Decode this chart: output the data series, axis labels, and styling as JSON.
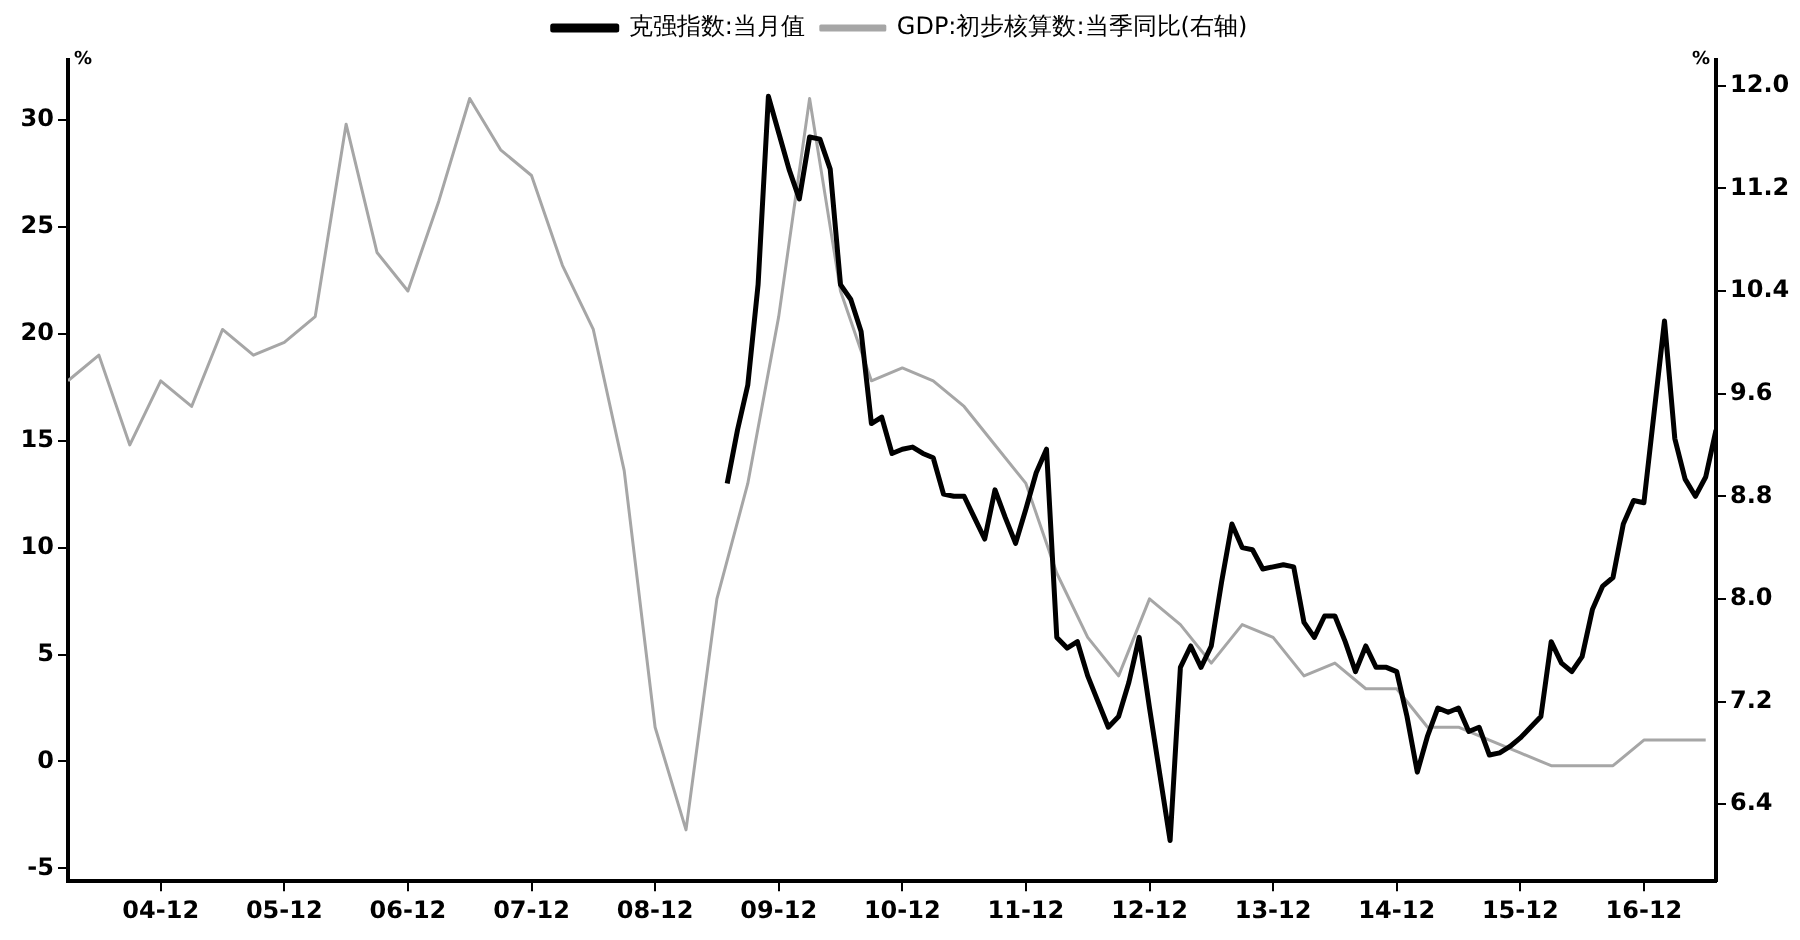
{
  "chart_data": {
    "type": "line",
    "ylabel": "%",
    "y2label": "%",
    "xlim": [
      "2004-03",
      "2017-07"
    ],
    "xticks": [
      {
        "value": "2004-12",
        "label": "04-12"
      },
      {
        "value": "2005-12",
        "label": "05-12"
      },
      {
        "value": "2006-12",
        "label": "06-12"
      },
      {
        "value": "2007-12",
        "label": "07-12"
      },
      {
        "value": "2008-12",
        "label": "08-12"
      },
      {
        "value": "2009-12",
        "label": "09-12"
      },
      {
        "value": "2010-12",
        "label": "10-12"
      },
      {
        "value": "2011-12",
        "label": "11-12"
      },
      {
        "value": "2012-12",
        "label": "12-12"
      },
      {
        "value": "2013-12",
        "label": "13-12"
      },
      {
        "value": "2014-12",
        "label": "14-12"
      },
      {
        "value": "2015-12",
        "label": "15-12"
      },
      {
        "value": "2016-12",
        "label": "16-12"
      }
    ],
    "ylim": [
      -5.6,
      32.8
    ],
    "yticks": [
      -5,
      0,
      5,
      10,
      15,
      20,
      25,
      30
    ],
    "y2lim": [
      5.8,
      12.2
    ],
    "y2ticks": [
      {
        "value": 6.4,
        "label": "6.4"
      },
      {
        "value": 7.2,
        "label": "7.2"
      },
      {
        "value": 8,
        "label": "8.0"
      },
      {
        "value": 8.8,
        "label": "8.8"
      },
      {
        "value": 9.6,
        "label": "9.6"
      },
      {
        "value": 10.4,
        "label": "10.4"
      },
      {
        "value": 11.2,
        "label": "11.2"
      },
      {
        "value": 12,
        "label": "12.0"
      }
    ],
    "grid": false,
    "legend": "top",
    "marker": "none",
    "line_style": "solid",
    "series": [
      {
        "name": "克强指数:当月值",
        "color": "#000000",
        "x": [
          "2009-07",
          "2009-08",
          "2009-09",
          "2009-10",
          "2009-11",
          "2009-12",
          "2010-01",
          "2010-02",
          "2010-03",
          "2010-04",
          "2010-05",
          "2010-06",
          "2010-07",
          "2010-08",
          "2010-09",
          "2010-10",
          "2010-11",
          "2010-12",
          "2011-01",
          "2011-02",
          "2011-03",
          "2011-04",
          "2011-05",
          "2011-06",
          "2011-07",
          "2011-08",
          "2011-09",
          "2011-10",
          "2011-11",
          "2011-12",
          "2012-01",
          "2012-02",
          "2012-03",
          "2012-04",
          "2012-05",
          "2012-06",
          "2012-07",
          "2012-08",
          "2012-09",
          "2012-10",
          "2012-11",
          "2012-12",
          "2013-01",
          "2013-02",
          "2013-03",
          "2013-04",
          "2013-05",
          "2013-06",
          "2013-07",
          "2013-08",
          "2013-09",
          "2013-10",
          "2013-11",
          "2013-12",
          "2014-01",
          "2014-02",
          "2014-03",
          "2014-04",
          "2014-05",
          "2014-06",
          "2014-07",
          "2014-08",
          "2014-09",
          "2014-10",
          "2014-11",
          "2014-12",
          "2015-01",
          "2015-02",
          "2015-03",
          "2015-04",
          "2015-05",
          "2015-06",
          "2015-07",
          "2015-08",
          "2015-09",
          "2015-10",
          "2015-11",
          "2015-12",
          "2016-01",
          "2016-02",
          "2016-03",
          "2016-04",
          "2016-05",
          "2016-06",
          "2016-07",
          "2016-08",
          "2016-09",
          "2016-10",
          "2016-11",
          "2016-12",
          "2017-02",
          "2017-03",
          "2017-04",
          "2017-05",
          "2017-06",
          "2017-07"
        ],
        "values": [
          13.0,
          15.5,
          17.6,
          22.3,
          31.1,
          29.4,
          27.7,
          26.3,
          29.2,
          29.1,
          27.7,
          22.3,
          21.6,
          20.1,
          15.8,
          16.1,
          14.4,
          14.6,
          14.7,
          14.4,
          14.2,
          12.5,
          12.4,
          12.4,
          11.4,
          10.4,
          12.7,
          11.4,
          10.2,
          11.8,
          13.5,
          14.6,
          5.8,
          5.3,
          5.6,
          4.0,
          2.8,
          1.6,
          2.1,
          3.7,
          5.8,
          2.5,
          -0.6,
          -3.7,
          4.4,
          5.4,
          4.4,
          5.4,
          8.4,
          11.1,
          10.0,
          9.9,
          9.0,
          9.1,
          9.2,
          9.1,
          6.5,
          5.8,
          6.8,
          6.8,
          5.6,
          4.2,
          5.4,
          4.4,
          4.4,
          4.2,
          2.1,
          -0.5,
          1.2,
          2.5,
          2.3,
          2.5,
          1.4,
          1.6,
          0.3,
          0.4,
          0.7,
          1.1,
          1.6,
          2.1,
          5.6,
          4.6,
          4.2,
          4.9,
          7.1,
          8.2,
          8.6,
          11.1,
          12.2,
          12.1,
          20.6,
          15.1,
          13.2,
          12.4,
          13.3,
          15.5
        ]
      },
      {
        "name": "GDP:初步核算数:当季同比(右轴)",
        "color": "#a6a6a6",
        "axis": "y2",
        "x": [
          "2004-03",
          "2004-06",
          "2004-09",
          "2004-12",
          "2005-03",
          "2005-06",
          "2005-09",
          "2005-12",
          "2006-03",
          "2006-06",
          "2006-09",
          "2006-12",
          "2007-03",
          "2007-06",
          "2007-09",
          "2007-12",
          "2008-03",
          "2008-06",
          "2008-09",
          "2008-12",
          "2009-03",
          "2009-06",
          "2009-09",
          "2009-12",
          "2010-03",
          "2010-06",
          "2010-09",
          "2010-12",
          "2011-03",
          "2011-06",
          "2011-09",
          "2011-12",
          "2012-03",
          "2012-06",
          "2012-09",
          "2012-12",
          "2013-03",
          "2013-06",
          "2013-09",
          "2013-12",
          "2014-03",
          "2014-06",
          "2014-09",
          "2014-12",
          "2015-03",
          "2015-06",
          "2015-09",
          "2015-12",
          "2016-03",
          "2016-06",
          "2016-09",
          "2016-12",
          "2017-03",
          "2017-06"
        ],
        "values": [
          9.7,
          9.9,
          9.2,
          9.7,
          9.5,
          10.1,
          9.9,
          10.0,
          10.2,
          11.7,
          10.7,
          10.4,
          11.1,
          11.9,
          11.5,
          11.3,
          10.6,
          10.1,
          9.0,
          7.0,
          6.2,
          8.0,
          8.9,
          10.2,
          11.9,
          10.4,
          9.7,
          9.8,
          9.7,
          9.5,
          9.2,
          8.9,
          8.2,
          7.7,
          7.4,
          8.0,
          7.8,
          7.5,
          7.8,
          7.7,
          7.4,
          7.5,
          7.3,
          7.3,
          7.0,
          7.0,
          6.9,
          6.8,
          6.7,
          6.7,
          6.7,
          6.9,
          6.9,
          6.9
        ]
      }
    ]
  }
}
